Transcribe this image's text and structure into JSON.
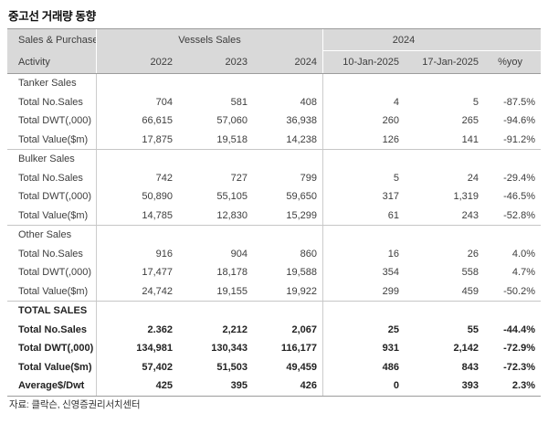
{
  "title": "중고선 거래량 동향",
  "source": "자료: 클락슨, 신영증권리서치센터",
  "colors": {
    "header_bg": "#d9d9d9",
    "text": "#3d3d3d",
    "border_strong": "#9c9c9c",
    "border_light": "#c6c6c6"
  },
  "table": {
    "header": {
      "col1_line1": "Sales & Purchase",
      "col1_line2": "Activity",
      "group1": "Vessels Sales",
      "group2": "2024",
      "sub1": [
        "2022",
        "2023",
        "2024"
      ],
      "sub2": [
        "10-Jan-2025",
        "17-Jan-2025",
        "%yoy"
      ]
    },
    "sections": [
      {
        "name": "Tanker Sales",
        "bold": false,
        "rows": [
          {
            "label": "Total No.Sales",
            "values": [
              "704",
              "581",
              "408",
              "4",
              "5",
              "-87.5%"
            ]
          },
          {
            "label": "Total DWT(,000)",
            "values": [
              "66,615",
              "57,060",
              "36,938",
              "260",
              "265",
              "-94.6%"
            ]
          },
          {
            "label": "Total Value($m)",
            "values": [
              "17,875",
              "19,518",
              "14,238",
              "126",
              "141",
              "-91.2%"
            ]
          }
        ]
      },
      {
        "name": "Bulker Sales",
        "bold": false,
        "rows": [
          {
            "label": "Total No.Sales",
            "values": [
              "742",
              "727",
              "799",
              "5",
              "24",
              "-29.4%"
            ]
          },
          {
            "label": "Total DWT(,000)",
            "values": [
              "50,890",
              "55,105",
              "59,650",
              "317",
              "1,319",
              "-46.5%"
            ]
          },
          {
            "label": "Total Value($m)",
            "values": [
              "14,785",
              "12,830",
              "15,299",
              "61",
              "243",
              "-52.8%"
            ]
          }
        ]
      },
      {
        "name": "Other Sales",
        "bold": false,
        "rows": [
          {
            "label": "Total No.Sales",
            "values": [
              "916",
              "904",
              "860",
              "16",
              "26",
              "4.0%"
            ]
          },
          {
            "label": "Total DWT(,000)",
            "values": [
              "17,477",
              "18,178",
              "19,588",
              "354",
              "558",
              "4.7%"
            ]
          },
          {
            "label": "Total Value($m)",
            "values": [
              "24,742",
              "19,155",
              "19,922",
              "299",
              "459",
              "-50.2%"
            ]
          }
        ]
      },
      {
        "name": "TOTAL SALES",
        "bold": true,
        "rows": [
          {
            "label": "Total No.Sales",
            "values": [
              "2.362",
              "2,212",
              "2,067",
              "25",
              "55",
              "-44.4%"
            ]
          },
          {
            "label": "Total DWT(,000)",
            "values": [
              "134,981",
              "130,343",
              "116,177",
              "931",
              "2,142",
              "-72.9%"
            ]
          },
          {
            "label": "Total Value($m)",
            "values": [
              "57,402",
              "51,503",
              "49,459",
              "486",
              "843",
              "-72.3%"
            ]
          },
          {
            "label": "Average$/Dwt",
            "values": [
              "425",
              "395",
              "426",
              "0",
              "393",
              "2.3%"
            ]
          }
        ]
      }
    ]
  },
  "chart_data": {
    "type": "table",
    "title": "중고선 거래량 동향",
    "column_groups": [
      {
        "label": "Vessels Sales",
        "columns": [
          "2022",
          "2023",
          "2024"
        ]
      },
      {
        "label": "2024",
        "columns": [
          "10-Jan-2025",
          "17-Jan-2025",
          "%yoy"
        ]
      }
    ],
    "columns": [
      "Sales & Purchase Activity",
      "2022",
      "2023",
      "2024",
      "10-Jan-2025",
      "17-Jan-2025",
      "%yoy"
    ],
    "rows": [
      [
        "Tanker Sales",
        "",
        "",
        "",
        "",
        "",
        ""
      ],
      [
        "Total No.Sales",
        "704",
        "581",
        "408",
        "4",
        "5",
        "-87.5%"
      ],
      [
        "Total DWT(,000)",
        "66,615",
        "57,060",
        "36,938",
        "260",
        "265",
        "-94.6%"
      ],
      [
        "Total Value($m)",
        "17,875",
        "19,518",
        "14,238",
        "126",
        "141",
        "-91.2%"
      ],
      [
        "Bulker Sales",
        "",
        "",
        "",
        "",
        "",
        ""
      ],
      [
        "Total No.Sales",
        "742",
        "727",
        "799",
        "5",
        "24",
        "-29.4%"
      ],
      [
        "Total DWT(,000)",
        "50,890",
        "55,105",
        "59,650",
        "317",
        "1,319",
        "-46.5%"
      ],
      [
        "Total Value($m)",
        "14,785",
        "12,830",
        "15,299",
        "61",
        "243",
        "-52.8%"
      ],
      [
        "Other Sales",
        "",
        "",
        "",
        "",
        "",
        ""
      ],
      [
        "Total No.Sales",
        "916",
        "904",
        "860",
        "16",
        "26",
        "4.0%"
      ],
      [
        "Total DWT(,000)",
        "17,477",
        "18,178",
        "19,588",
        "354",
        "558",
        "4.7%"
      ],
      [
        "Total Value($m)",
        "24,742",
        "19,155",
        "19,922",
        "299",
        "459",
        "-50.2%"
      ],
      [
        "TOTAL SALES",
        "",
        "",
        "",
        "",
        "",
        ""
      ],
      [
        "Total No.Sales",
        "2.362",
        "2,212",
        "2,067",
        "25",
        "55",
        "-44.4%"
      ],
      [
        "Total DWT(,000)",
        "134,981",
        "130,343",
        "116,177",
        "931",
        "2,142",
        "-72.9%"
      ],
      [
        "Total Value($m)",
        "57,402",
        "51,503",
        "49,459",
        "486",
        "843",
        "-72.3%"
      ],
      [
        "Average$/Dwt",
        "425",
        "395",
        "426",
        "0",
        "393",
        "2.3%"
      ]
    ],
    "source": "자료: 클락슨, 신영증권리서치센터"
  }
}
